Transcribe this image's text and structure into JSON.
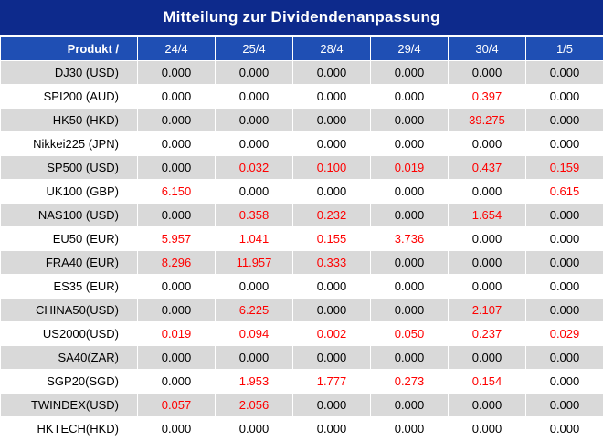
{
  "title": "Mitteilung zur Dividendenanpassung",
  "header": {
    "product_label": "Produkt /",
    "dates": [
      "24/4",
      "25/4",
      "28/4",
      "29/4",
      "30/4",
      "1/5"
    ]
  },
  "colors": {
    "title_bg": "#0d2a8c",
    "header_bg": "#1f4fb4",
    "stripe": "#d9d9d9",
    "highlight": "#ff0000"
  },
  "rows": [
    {
      "product": "DJ30 (USD)",
      "values": [
        "0.000",
        "0.000",
        "0.000",
        "0.000",
        "0.000",
        "0.000"
      ],
      "red": [
        false,
        false,
        false,
        false,
        false,
        false
      ]
    },
    {
      "product": "SPI200 (AUD)",
      "values": [
        "0.000",
        "0.000",
        "0.000",
        "0.000",
        "0.397",
        "0.000"
      ],
      "red": [
        false,
        false,
        false,
        false,
        true,
        false
      ]
    },
    {
      "product": "HK50 (HKD)",
      "values": [
        "0.000",
        "0.000",
        "0.000",
        "0.000",
        "39.275",
        "0.000"
      ],
      "red": [
        false,
        false,
        false,
        false,
        true,
        false
      ]
    },
    {
      "product": "Nikkei225 (JPN)",
      "values": [
        "0.000",
        "0.000",
        "0.000",
        "0.000",
        "0.000",
        "0.000"
      ],
      "red": [
        false,
        false,
        false,
        false,
        false,
        false
      ]
    },
    {
      "product": "SP500 (USD)",
      "values": [
        "0.000",
        "0.032",
        "0.100",
        "0.019",
        "0.437",
        "0.159"
      ],
      "red": [
        false,
        true,
        true,
        true,
        true,
        true
      ]
    },
    {
      "product": "UK100 (GBP)",
      "values": [
        "6.150",
        "0.000",
        "0.000",
        "0.000",
        "0.000",
        "0.615"
      ],
      "red": [
        true,
        false,
        false,
        false,
        false,
        true
      ]
    },
    {
      "product": "NAS100 (USD)",
      "values": [
        "0.000",
        "0.358",
        "0.232",
        "0.000",
        "1.654",
        "0.000"
      ],
      "red": [
        false,
        true,
        true,
        false,
        true,
        false
      ]
    },
    {
      "product": "EU50 (EUR)",
      "values": [
        "5.957",
        "1.041",
        "0.155",
        "3.736",
        "0.000",
        "0.000"
      ],
      "red": [
        true,
        true,
        true,
        true,
        false,
        false
      ]
    },
    {
      "product": "FRA40 (EUR)",
      "values": [
        "8.296",
        "11.957",
        "0.333",
        "0.000",
        "0.000",
        "0.000"
      ],
      "red": [
        true,
        true,
        true,
        false,
        false,
        false
      ]
    },
    {
      "product": "ES35 (EUR)",
      "values": [
        "0.000",
        "0.000",
        "0.000",
        "0.000",
        "0.000",
        "0.000"
      ],
      "red": [
        false,
        false,
        false,
        false,
        false,
        false
      ]
    },
    {
      "product": "CHINA50(USD)",
      "values": [
        "0.000",
        "6.225",
        "0.000",
        "0.000",
        "2.107",
        "0.000"
      ],
      "red": [
        false,
        true,
        false,
        false,
        true,
        false
      ]
    },
    {
      "product": "US2000(USD)",
      "values": [
        "0.019",
        "0.094",
        "0.002",
        "0.050",
        "0.237",
        "0.029"
      ],
      "red": [
        true,
        true,
        true,
        true,
        true,
        true
      ]
    },
    {
      "product": "SA40(ZAR)",
      "values": [
        "0.000",
        "0.000",
        "0.000",
        "0.000",
        "0.000",
        "0.000"
      ],
      "red": [
        false,
        false,
        false,
        false,
        false,
        false
      ]
    },
    {
      "product": "SGP20(SGD)",
      "values": [
        "0.000",
        "1.953",
        "1.777",
        "0.273",
        "0.154",
        "0.000"
      ],
      "red": [
        false,
        true,
        true,
        true,
        true,
        false
      ]
    },
    {
      "product": "TWINDEX(USD)",
      "values": [
        "0.057",
        "2.056",
        "0.000",
        "0.000",
        "0.000",
        "0.000"
      ],
      "red": [
        true,
        true,
        false,
        false,
        false,
        false
      ]
    },
    {
      "product": "HKTECH(HKD)",
      "values": [
        "0.000",
        "0.000",
        "0.000",
        "0.000",
        "0.000",
        "0.000"
      ],
      "red": [
        false,
        false,
        false,
        false,
        false,
        false
      ]
    }
  ]
}
